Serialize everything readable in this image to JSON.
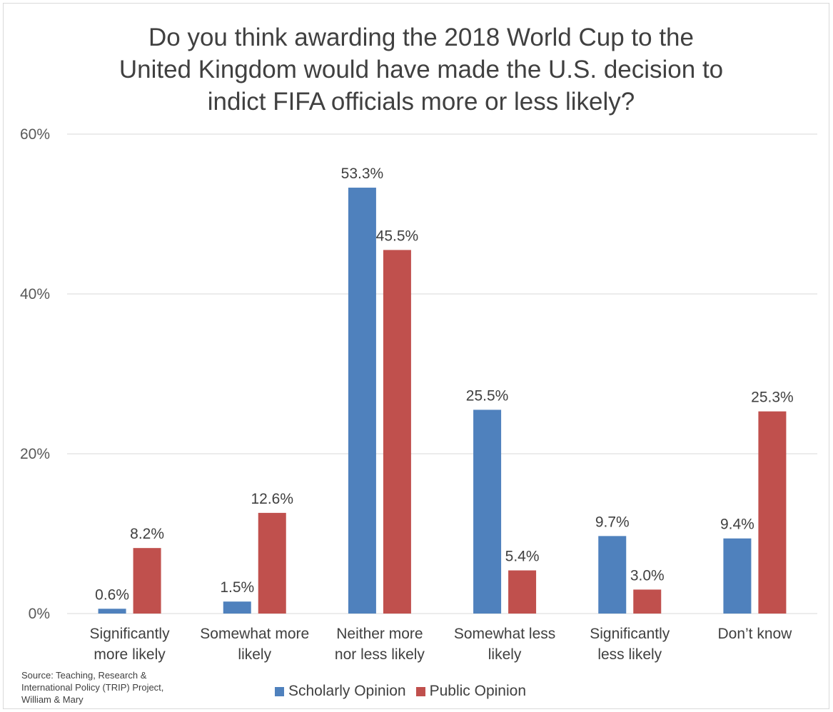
{
  "chart_data": {
    "type": "bar",
    "title_lines": [
      "Do you think awarding the 2018 World Cup to the",
      "United Kingdom would have made the U.S. decision to",
      "indict FIFA officials more or less likely?"
    ],
    "categories": [
      [
        "Significantly",
        "more likely"
      ],
      [
        "Somewhat more",
        "likely"
      ],
      [
        "Neither more",
        "nor less likely"
      ],
      [
        "Somewhat less",
        "likely"
      ],
      [
        "Significantly",
        "less likely"
      ],
      [
        "Don’t know"
      ]
    ],
    "series": [
      {
        "name": "Scholarly Opinion",
        "color": "#4f81bd",
        "values": [
          0.6,
          1.5,
          53.3,
          25.5,
          9.7,
          9.4
        ],
        "labels": [
          "0.6%",
          "1.5%",
          "53.3%",
          "25.5%",
          "9.7%",
          "9.4%"
        ]
      },
      {
        "name": "Public Opinion",
        "color": "#c0504d",
        "values": [
          8.2,
          12.6,
          45.5,
          5.4,
          3.0,
          25.3
        ],
        "labels": [
          "8.2%",
          "12.6%",
          "45.5%",
          "5.4%",
          "3.0%",
          "25.3%"
        ]
      }
    ],
    "yticks": [
      0,
      20,
      40,
      60
    ],
    "ytick_labels": [
      "0%",
      "20%",
      "40%",
      "60%"
    ],
    "ylim": [
      0,
      60
    ],
    "grid": true,
    "legend_position": "bottom"
  },
  "source_lines": [
    "Source: Teaching, Research &",
    "International Policy (TRIP) Project,",
    "William & Mary"
  ]
}
